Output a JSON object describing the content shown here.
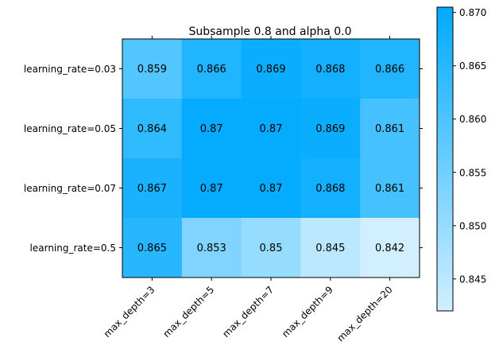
{
  "chart_data": {
    "type": "heatmap",
    "title": "Subsample 0.8 and alpha 0.0",
    "rows": [
      "learning_rate=0.03",
      "learning_rate=0.05",
      "learning_rate=0.07",
      "learning_rate=0.5"
    ],
    "columns": [
      "max_depth=3",
      "max_depth=5",
      "max_depth=7",
      "max_depth=9",
      "max_depth=20"
    ],
    "values": [
      [
        0.859,
        0.866,
        0.869,
        0.868,
        0.866
      ],
      [
        0.864,
        0.87,
        0.87,
        0.869,
        0.861
      ],
      [
        0.867,
        0.87,
        0.87,
        0.868,
        0.861
      ],
      [
        0.865,
        0.853,
        0.85,
        0.845,
        0.842
      ]
    ],
    "cell_labels": [
      [
        "0.859",
        "0.866",
        "0.869",
        "0.868",
        "0.866"
      ],
      [
        "0.864",
        "0.87",
        "0.87",
        "0.869",
        "0.861"
      ],
      [
        "0.867",
        "0.87",
        "0.87",
        "0.868",
        "0.861"
      ],
      [
        "0.865",
        "0.853",
        "0.85",
        "0.845",
        "0.842"
      ]
    ],
    "colorbar": {
      "range": [
        0.842,
        0.8705
      ],
      "ticks": [
        "0.845",
        "0.850",
        "0.855",
        "0.860",
        "0.865",
        "0.870"
      ],
      "tick_values": [
        0.845,
        0.85,
        0.855,
        0.86,
        0.865,
        0.87
      ],
      "color_low": "#d1efff",
      "color_high": "#00aaff"
    }
  }
}
